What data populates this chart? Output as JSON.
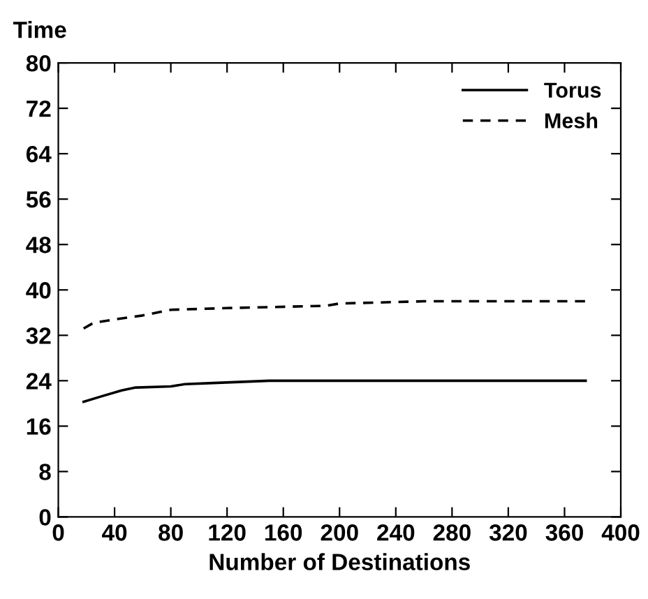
{
  "chart_data": {
    "type": "line",
    "xlabel": "Number of Destinations",
    "ylabel": "Time",
    "xlim": [
      0,
      400
    ],
    "ylim": [
      0,
      80
    ],
    "xticks": [
      0,
      40,
      80,
      120,
      160,
      200,
      240,
      280,
      320,
      360,
      400
    ],
    "yticks": [
      0,
      8,
      16,
      24,
      32,
      40,
      48,
      56,
      64,
      72,
      80
    ],
    "grid": false,
    "legend": "top right",
    "series": [
      {
        "name": "Torus",
        "color": "#000000",
        "line_style": "solid",
        "x": [
          18,
          30,
          45,
          55,
          80,
          90,
          110,
          150,
          200,
          300,
          375
        ],
        "values": [
          20.3,
          21.2,
          22.3,
          22.8,
          23,
          23.4,
          23.6,
          24,
          24,
          24,
          24
        ]
      },
      {
        "name": "Mesh",
        "color": "#000000",
        "line_style": "dashed",
        "x": [
          18,
          25,
          40,
          60,
          80,
          120,
          190,
          200,
          260,
          375
        ],
        "values": [
          33.2,
          34.2,
          34.8,
          35.5,
          36.5,
          36.8,
          37.2,
          37.6,
          38,
          38
        ]
      }
    ]
  }
}
